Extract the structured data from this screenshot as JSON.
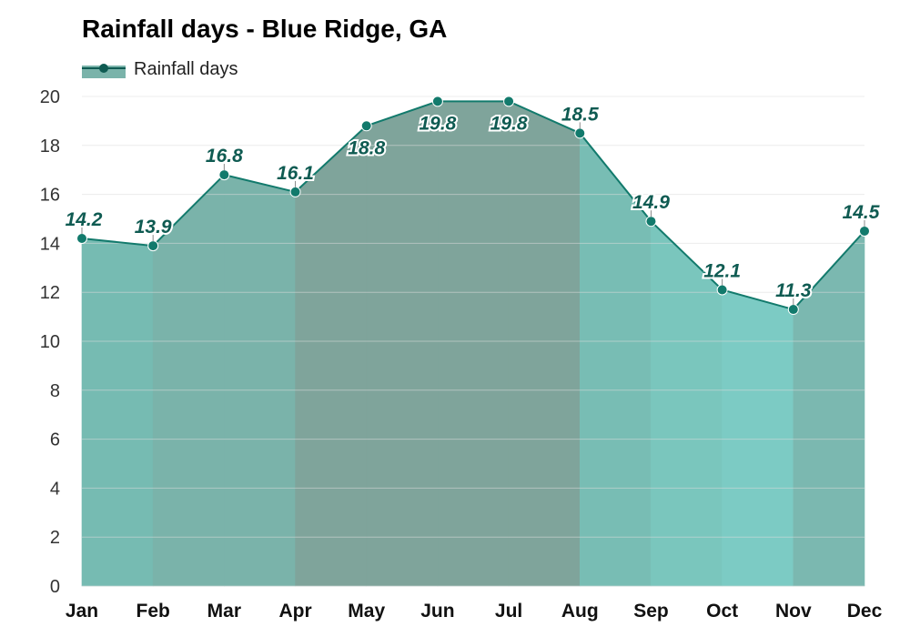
{
  "chart_data": {
    "type": "area",
    "title": "Rainfall days - Blue Ridge, GA",
    "categories": [
      "Jan",
      "Feb",
      "Mar",
      "Apr",
      "May",
      "Jun",
      "Jul",
      "Aug",
      "Sep",
      "Oct",
      "Nov",
      "Dec"
    ],
    "series": [
      {
        "name": "Rainfall days",
        "values": [
          14.2,
          13.9,
          16.8,
          16.1,
          18.8,
          19.8,
          19.8,
          18.5,
          14.9,
          12.1,
          11.3,
          14.5
        ],
        "labels": [
          "14.2",
          "13.9",
          "16.8",
          "16.1",
          "18.8",
          "19.8",
          "19.8",
          "18.5",
          "14.9",
          "12.1",
          "11.3",
          "14.5"
        ]
      }
    ],
    "ylim": [
      0,
      20
    ],
    "yticks": [
      0,
      2,
      4,
      6,
      8,
      10,
      12,
      14,
      16,
      18,
      20
    ],
    "grid": true,
    "legend": "top-left",
    "colors": {
      "line": "#127a6c",
      "marker": "#127a6c",
      "marker_legend": "#0f5b52",
      "label": "#0f5b52",
      "band_jan_feb": "#76bbb2",
      "band_feb_mar_apr": "#7ab3aa",
      "band_may_aug": "#7fa49b",
      "band_aug_sep": "#78bdb4",
      "band_sep_oct": "#7ac6bd",
      "band_oct_nov": "#7ccbc4",
      "band_nov_dec": "#7bb8b0",
      "grid": "#dddddd"
    }
  }
}
